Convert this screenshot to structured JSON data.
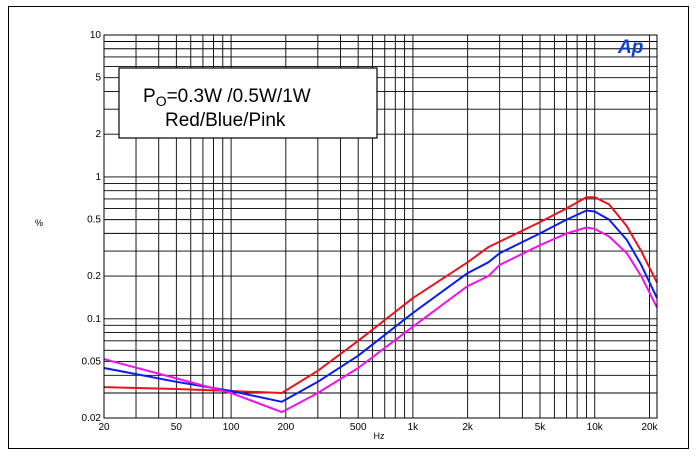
{
  "chart_data": {
    "type": "line",
    "x_scale": "log",
    "y_scale": "log",
    "xlabel": "Hz",
    "ylabel": "%",
    "xlim": [
      20,
      22000
    ],
    "ylim": [
      0.02,
      10
    ],
    "grid": true,
    "x_ticks": [
      {
        "v": 20,
        "label": "20"
      },
      {
        "v": 50,
        "label": "50"
      },
      {
        "v": 100,
        "label": "100"
      },
      {
        "v": 200,
        "label": "200"
      },
      {
        "v": 500,
        "label": "500"
      },
      {
        "v": 1000,
        "label": "1k"
      },
      {
        "v": 2000,
        "label": "2k"
      },
      {
        "v": 5000,
        "label": "5k"
      },
      {
        "v": 10000,
        "label": "10k"
      },
      {
        "v": 20000,
        "label": "20k"
      }
    ],
    "y_ticks": [
      {
        "v": 0.02,
        "label": "0.02"
      },
      {
        "v": 0.05,
        "label": "0.05"
      },
      {
        "v": 0.1,
        "label": "0.1"
      },
      {
        "v": 0.2,
        "label": "0.2"
      },
      {
        "v": 0.5,
        "label": "0.5"
      },
      {
        "v": 1,
        "label": "1"
      },
      {
        "v": 2,
        "label": "2"
      },
      {
        "v": 5,
        "label": "5"
      },
      {
        "v": 10,
        "label": "10"
      }
    ],
    "legend": {
      "placement": "top-left",
      "line1_main": "P",
      "line1_sub": "O",
      "line1_rest": "=0.3W /0.5W/1W",
      "line2": "Red/Blue/Pink"
    },
    "brand_logo": "Ap",
    "series": [
      {
        "color": "#e8141b",
        "x": [
          20,
          50,
          100,
          190,
          300,
          500,
          1000,
          2000,
          2600,
          3000,
          5000,
          7000,
          9000,
          10000,
          12000,
          15000,
          18000,
          22000
        ],
        "y": [
          0.033,
          0.032,
          0.031,
          0.03,
          0.043,
          0.07,
          0.14,
          0.25,
          0.32,
          0.35,
          0.48,
          0.6,
          0.72,
          0.72,
          0.64,
          0.45,
          0.3,
          0.18
        ]
      },
      {
        "color": "#0a1ee8",
        "x": [
          20,
          50,
          100,
          190,
          300,
          500,
          1000,
          2000,
          2600,
          3000,
          5000,
          7000,
          9000,
          10000,
          12000,
          15000,
          18000,
          22000
        ],
        "y": [
          0.045,
          0.036,
          0.031,
          0.026,
          0.036,
          0.055,
          0.11,
          0.21,
          0.25,
          0.29,
          0.4,
          0.5,
          0.58,
          0.57,
          0.5,
          0.36,
          0.24,
          0.14
        ]
      },
      {
        "color": "#f012e8",
        "x": [
          20,
          50,
          100,
          190,
          300,
          500,
          1000,
          2000,
          2600,
          3000,
          5000,
          7000,
          9000,
          10000,
          12000,
          15000,
          18000,
          22000
        ],
        "y": [
          0.052,
          0.038,
          0.03,
          0.022,
          0.03,
          0.045,
          0.088,
          0.17,
          0.2,
          0.24,
          0.33,
          0.4,
          0.44,
          0.43,
          0.38,
          0.29,
          0.2,
          0.12
        ]
      }
    ]
  }
}
